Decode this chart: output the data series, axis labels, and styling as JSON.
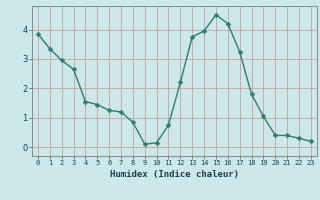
{
  "x": [
    0,
    1,
    2,
    3,
    4,
    5,
    6,
    7,
    8,
    9,
    10,
    11,
    12,
    13,
    14,
    15,
    16,
    17,
    18,
    19,
    20,
    21,
    22,
    23
  ],
  "y": [
    3.85,
    3.35,
    2.95,
    2.65,
    1.55,
    1.45,
    1.25,
    1.2,
    0.85,
    0.1,
    0.15,
    0.75,
    2.2,
    3.75,
    3.95,
    4.5,
    4.2,
    3.25,
    1.8,
    1.05,
    0.4,
    0.4,
    0.3,
    0.2
  ],
  "line_color": "#2e7d6e",
  "marker": "D",
  "marker_size": 2.5,
  "background_color": "#cce8e8",
  "grid_color": "#c8a0a0",
  "xlabel": "Humidex (Indice chaleur)",
  "ylim": [
    -0.3,
    4.8
  ],
  "xlim": [
    -0.5,
    23.5
  ],
  "yticks": [
    0,
    1,
    2,
    3,
    4
  ],
  "xticks": [
    0,
    1,
    2,
    3,
    4,
    5,
    6,
    7,
    8,
    9,
    10,
    11,
    12,
    13,
    14,
    15,
    16,
    17,
    18,
    19,
    20,
    21,
    22,
    23
  ],
  "tick_color": "#2e5d5d",
  "label_color": "#1a4040",
  "spine_color": "#888888"
}
